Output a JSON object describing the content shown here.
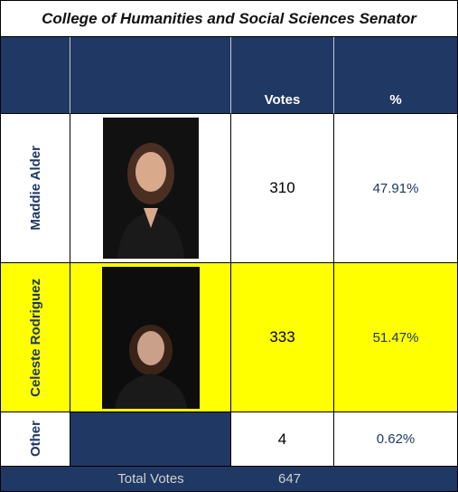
{
  "title": "College of Humanities and Social Sciences Senator",
  "table": {
    "header": [
      "Votes",
      "%"
    ],
    "rows": [
      {
        "name": "Maddie Alder",
        "votes": 310,
        "percent": "47.91%"
      },
      {
        "name": "Celeste Rodriguez",
        "votes": 333,
        "percent": "51.47%"
      },
      {
        "name": "Other",
        "votes": 4,
        "percent": "0.62%"
      }
    ],
    "total": {
      "label": "Total Votes",
      "votes": 647
    }
  }
}
